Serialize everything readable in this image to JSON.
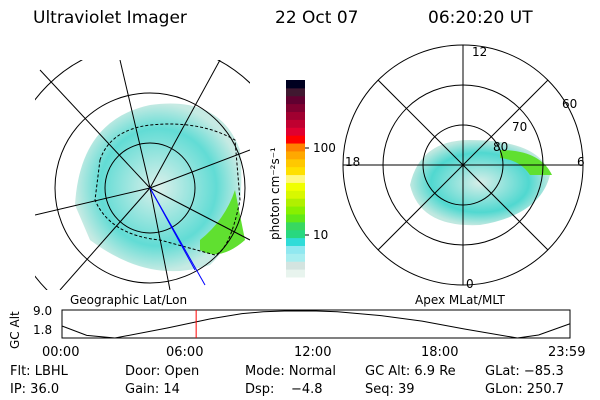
{
  "header": {
    "instrument": "Ultraviolet Imager",
    "date": "22 Oct 07",
    "time": "06:20:20 UT"
  },
  "left_panel": {
    "label": "Geographic Lat/Lon"
  },
  "right_panel": {
    "label": "Apex MLat/MLT",
    "mlt_labels": [
      "12",
      "18",
      "6",
      "0"
    ],
    "mlat_labels": [
      "60",
      "70",
      "80"
    ]
  },
  "colorbar": {
    "label": "photon cm⁻²s⁻¹",
    "ticks": [
      "100",
      "10"
    ],
    "colors": [
      "#e8f4ee",
      "#d4e4e0",
      "#a8eef0",
      "#90e8f0",
      "#30dcd8",
      "#28d880",
      "#38d860",
      "#60e818",
      "#88f000",
      "#b0f000",
      "#d8f800",
      "#f0ff00",
      "#fff880",
      "#ffe000",
      "#ffc800",
      "#ffa800",
      "#ff8000",
      "#ff0000",
      "#e00030",
      "#c00030",
      "#a00030",
      "#800030",
      "#600030",
      "#401830",
      "#000020"
    ]
  },
  "chart_data": {
    "type": "line",
    "ylabel": "GC Alt",
    "yticks": [
      "9.0",
      "1.8"
    ],
    "ylim": [
      1.8,
      9.0
    ],
    "xticks": [
      "00:00",
      "06:00",
      "12:00",
      "18:00",
      "23:59"
    ],
    "x": [
      "00:00",
      "01:10",
      "02:30",
      "05:00",
      "07:00",
      "08:30",
      "09:30",
      "10:30",
      "12:00",
      "13:00",
      "15:00",
      "17:00",
      "19:00",
      "21:30",
      "22:30",
      "23:59"
    ],
    "y": [
      5.0,
      2.5,
      1.8,
      4.5,
      6.9,
      8.3,
      8.8,
      9.0,
      9.0,
      8.8,
      7.8,
      6.3,
      4.2,
      1.8,
      2.6,
      5.6
    ],
    "current_time": "06:20"
  },
  "footer": {
    "rows": [
      [
        "Flt: LBHL",
        "Door: Open",
        "Mode: Normal",
        "GC Alt: 6.9 Re",
        "GLat: −85.3"
      ],
      [
        "IP: 36.0",
        "Gain: 14",
        "Dsp:    −4.8",
        "Seq: 39",
        "GLon: 250.7"
      ]
    ]
  },
  "colors": {
    "marker": "#ff0000",
    "aurora": "#40d8c8"
  }
}
